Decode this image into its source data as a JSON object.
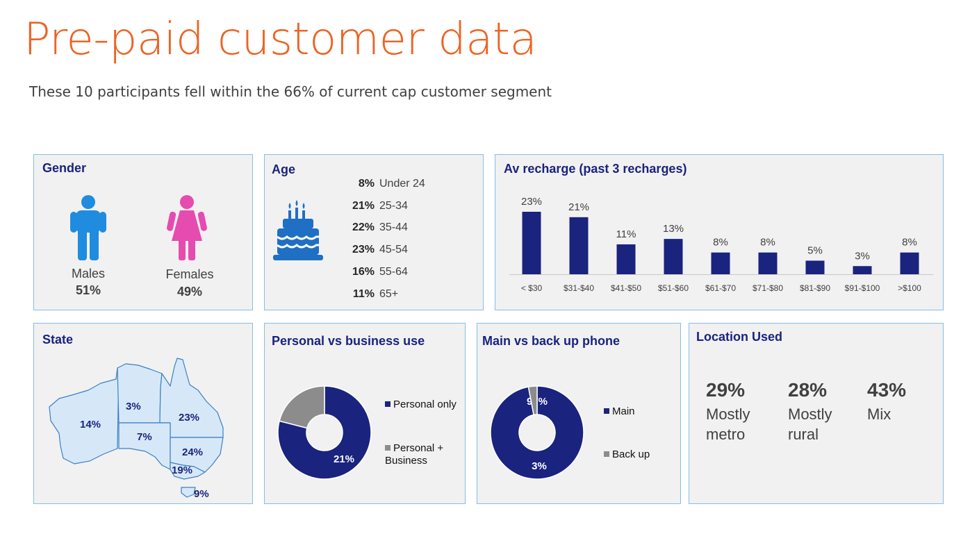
{
  "title": "Pre-paid customer data",
  "subtitle": "These 10 participants fell within the 66% of current cap customer segment",
  "colors": {
    "accent": "#ec6424",
    "navy": "#1a237e",
    "grey": "#8c8c8c",
    "panel_border": "#86bde7",
    "map_fill": "#d6e8f7"
  },
  "gender": {
    "title": "Gender",
    "males_label": "Males",
    "males_pct": "51%",
    "females_label": "Females",
    "females_pct": "49%",
    "male_icon": "male-person-icon",
    "female_icon": "female-person-icon"
  },
  "age": {
    "title": "Age",
    "icon": "birthday-cake-icon",
    "rows": [
      {
        "pct": "8%",
        "label": "Under 24"
      },
      {
        "pct": "21%",
        "label": "25-34"
      },
      {
        "pct": "22%",
        "label": "35-44"
      },
      {
        "pct": "23%",
        "label": "45-54"
      },
      {
        "pct": "16%",
        "label": "55-64"
      },
      {
        "pct": "11%",
        "label": "65+"
      }
    ]
  },
  "state": {
    "title": "State",
    "map_icon": "australia-map-icon",
    "regions": [
      {
        "name": "WA",
        "pct": "14%"
      },
      {
        "name": "NT",
        "pct": "3%"
      },
      {
        "name": "QLD",
        "pct": "23%"
      },
      {
        "name": "SA",
        "pct": "7%"
      },
      {
        "name": "NSW",
        "pct": "24%"
      },
      {
        "name": "VIC",
        "pct": "19%"
      },
      {
        "name": "TAS",
        "pct": "9%"
      }
    ]
  },
  "personal_business": {
    "title": "Personal vs business use"
  },
  "main_backup": {
    "title": "Main vs back up phone"
  },
  "location": {
    "title": "Location Used",
    "items": [
      {
        "pct": "29%",
        "label": "Mostly metro"
      },
      {
        "pct": "28%",
        "label": "Mostly rural"
      },
      {
        "pct": "43%",
        "label": "Mix"
      }
    ]
  },
  "chart_data": [
    {
      "type": "bar",
      "title": "Av recharge (past 3 recharges)",
      "categories": [
        "< $30",
        "$31-$40",
        "$41-$50",
        "$51-$60",
        "$61-$70",
        "$71-$80",
        "$81-$90",
        "$91-$100",
        ">$100"
      ],
      "values": [
        23,
        21,
        11,
        13,
        8,
        8,
        5,
        3,
        8
      ],
      "value_labels": [
        "23%",
        "21%",
        "11%",
        "13%",
        "8%",
        "8%",
        "5%",
        "3%",
        "8%"
      ],
      "ylim": [
        0,
        25
      ],
      "color": "#1a237e"
    },
    {
      "type": "pie",
      "variant": "donut",
      "title": "Personal vs business use",
      "labels": [
        "Personal only",
        "Personal + Business"
      ],
      "values": [
        79,
        21
      ],
      "value_labels": [
        "79%",
        "21%"
      ],
      "colors": [
        "#1a237e",
        "#8c8c8c"
      ]
    },
    {
      "type": "pie",
      "variant": "donut",
      "title": "Main vs back up phone",
      "labels": [
        "Main",
        "Back up"
      ],
      "values": [
        97,
        3
      ],
      "value_labels": [
        "97%",
        "3%"
      ],
      "colors": [
        "#1a237e",
        "#8c8c8c"
      ]
    }
  ]
}
